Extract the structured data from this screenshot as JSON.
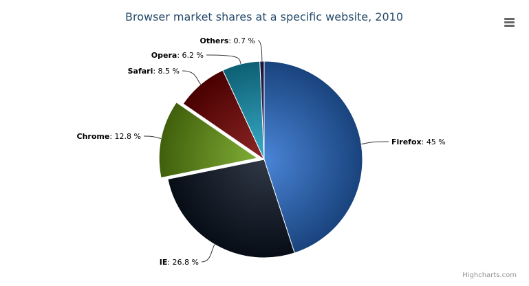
{
  "chart_data": {
    "type": "pie",
    "title": "Browser market shares at a specific website, 2010",
    "slices": [
      {
        "name": "Firefox",
        "value": 45,
        "label": "45 %",
        "color": "#2a6fd0",
        "sliced": false
      },
      {
        "name": "IE",
        "value": 26.8,
        "label": "26.8 %",
        "color": "#0b1525",
        "sliced": false
      },
      {
        "name": "Chrome",
        "value": 12.8,
        "label": "12.8 %",
        "color": "#6a9e12",
        "sliced": true
      },
      {
        "name": "Safari",
        "value": 8.5,
        "label": "8.5 %",
        "color": "#7a0000",
        "sliced": false
      },
      {
        "name": "Opera",
        "value": 6.2,
        "label": "6.2 %",
        "color": "#169fc0",
        "sliced": false
      },
      {
        "name": "Others",
        "value": 0.7,
        "label": "0.7 %",
        "color": "#2a2060",
        "sliced": false
      }
    ],
    "legend": "none"
  },
  "menu_icon": "hamburger-menu-icon",
  "credits": "Highcharts.com",
  "title_color": "#274b6d"
}
